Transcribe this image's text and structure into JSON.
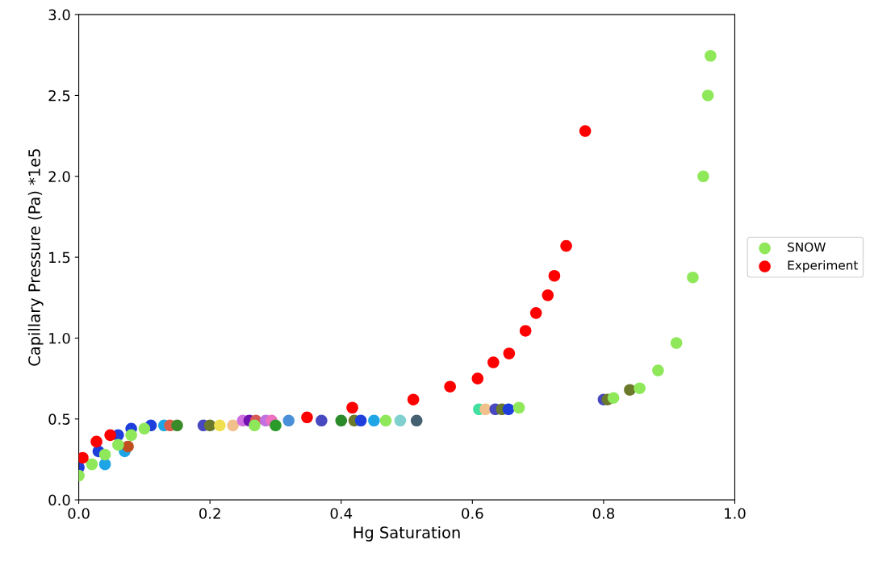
{
  "chart_data": {
    "type": "scatter",
    "xlabel": "Hg Saturation",
    "ylabel": "Capillary Pressure (Pa) *1e5",
    "legend": "right",
    "marker": "circle",
    "grid": false,
    "xlim": [
      0,
      1
    ],
    "xticks": [
      {
        "value": 0,
        "label": "0.0"
      },
      {
        "value": 0.2,
        "label": "0.2"
      },
      {
        "value": 0.4,
        "label": "0.4"
      },
      {
        "value": 0.6,
        "label": "0.6"
      },
      {
        "value": 0.8,
        "label": "0.8"
      },
      {
        "value": 1,
        "label": "1.0"
      }
    ],
    "ylim": [
      0,
      3
    ],
    "yticks": [
      {
        "value": 0,
        "label": "0.0"
      },
      {
        "value": 0.5,
        "label": "0.5"
      },
      {
        "value": 1,
        "label": "1.0"
      },
      {
        "value": 1.5,
        "label": "1.5"
      },
      {
        "value": 2,
        "label": "2.0"
      },
      {
        "value": 2.5,
        "label": "2.5"
      },
      {
        "value": 3,
        "label": "3.0"
      }
    ],
    "series": [
      {
        "x": [
          0.0,
          0.03,
          0.06,
          0.08,
          0.04,
          0.07,
          0.075,
          0.11,
          0.13,
          0.139,
          0.15,
          0.19,
          0.2,
          0.215,
          0.235,
          0.25,
          0.26,
          0.27,
          0.285,
          0.294,
          0.3,
          0.32,
          0.37,
          0.4,
          0.42,
          0.43,
          0.45,
          0.49,
          0.515,
          0.61,
          0.62,
          0.635,
          0.645,
          0.655,
          0.8,
          0.806,
          0.84
        ],
        "values": [
          0.2,
          0.3,
          0.4,
          0.44,
          0.22,
          0.3,
          0.33,
          0.46,
          0.46,
          0.46,
          0.46,
          0.46,
          0.46,
          0.46,
          0.46,
          0.49,
          0.49,
          0.49,
          0.49,
          0.49,
          0.46,
          0.49,
          0.49,
          0.49,
          0.49,
          0.49,
          0.49,
          0.49,
          0.49,
          0.56,
          0.56,
          0.56,
          0.56,
          0.56,
          0.62,
          0.62,
          0.68
        ],
        "colors": [
          "#1f3fdc",
          "#1f3fdc",
          "#1f3fdc",
          "#1f3fdc",
          "#1ea5e6",
          "#1ea5e6",
          "#c05020",
          "#1f3fdc",
          "#1ea5e6",
          "#d95f4b",
          "#3a8a2a",
          "#4848c0",
          "#6b7a2a",
          "#f0e050",
          "#f2c08a",
          "#d070e0",
          "#7010b0",
          "#d85858",
          "#c070e0",
          "#f070c0",
          "#2a9a2a",
          "#4a90d8",
          "#4848c0",
          "#2a8a2a",
          "#6b7a2a",
          "#1f3fdc",
          "#1ea5e6",
          "#80d0d0",
          "#456070",
          "#40e0a0",
          "#f2c08a",
          "#4848c0",
          "#6b7a2a",
          "#1f3fdc",
          "#4848c0",
          "#6b7a2a",
          "#6b7a2a"
        ]
      },
      {
        "name": "SNOW",
        "color": "#8fe85a",
        "x": [
          0.0,
          0.02,
          0.04,
          0.06,
          0.08,
          0.1,
          0.268,
          0.468,
          0.671,
          0.815,
          0.855,
          0.883,
          0.911,
          0.936,
          0.952,
          0.959,
          0.963
        ],
        "values": [
          0.15,
          0.22,
          0.28,
          0.34,
          0.4,
          0.44,
          0.46,
          0.49,
          0.57,
          0.63,
          0.69,
          0.8,
          0.97,
          1.375,
          2.0,
          2.5,
          2.745
        ]
      },
      {
        "name": "Experiment",
        "color": "#ff0000",
        "x": [
          0.006,
          0.027,
          0.048,
          0.348,
          0.417,
          0.51,
          0.566,
          0.608,
          0.632,
          0.656,
          0.681,
          0.697,
          0.715,
          0.725,
          0.743,
          0.772
        ],
        "values": [
          0.26,
          0.36,
          0.4,
          0.51,
          0.57,
          0.62,
          0.7,
          0.75,
          0.85,
          0.905,
          1.045,
          1.155,
          1.265,
          1.385,
          1.57,
          2.28
        ]
      }
    ]
  }
}
